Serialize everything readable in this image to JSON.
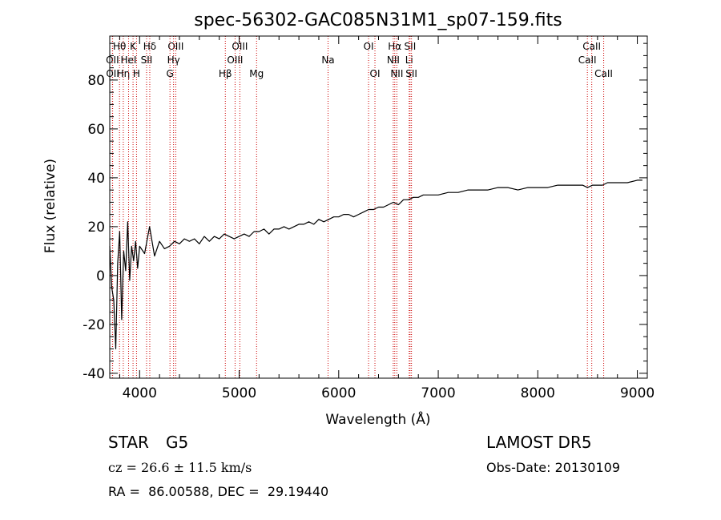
{
  "chart_data": {
    "type": "line",
    "title": "spec-56302-GAC085N31M1_sp07-159.fits",
    "xlabel": "Wavelength (Å)",
    "ylabel": "Flux (relative)",
    "xlim": [
      3700,
      9100
    ],
    "ylim": [
      -42,
      98
    ],
    "xticks": [
      4000,
      5000,
      6000,
      7000,
      8000,
      9000
    ],
    "yticks": [
      -40,
      -20,
      0,
      20,
      40,
      60,
      80
    ],
    "grid": false,
    "line_color": "#000000",
    "marker_color": "#cc0000",
    "series": [
      {
        "x": [
          3700,
          3720,
          3740,
          3760,
          3780,
          3800,
          3820,
          3840,
          3860,
          3880,
          3900,
          3920,
          3940,
          3960,
          3980,
          4000,
          4050,
          4100,
          4150,
          4200,
          4250,
          4300,
          4350,
          4400,
          4450,
          4500,
          4550,
          4600,
          4650,
          4700,
          4750,
          4800,
          4850,
          4900,
          4950,
          5000,
          5050,
          5100,
          5150,
          5200,
          5250,
          5300,
          5350,
          5400,
          5450,
          5500,
          5550,
          5600,
          5650,
          5700,
          5750,
          5800,
          5850,
          5900,
          5950,
          6000,
          6050,
          6100,
          6150,
          6200,
          6250,
          6300,
          6350,
          6400,
          6450,
          6500,
          6550,
          6600,
          6650,
          6700,
          6750,
          6800,
          6850,
          6900,
          6950,
          7000,
          7100,
          7200,
          7300,
          7400,
          7500,
          7600,
          7700,
          7800,
          7900,
          8000,
          8100,
          8200,
          8300,
          8400,
          8450,
          8500,
          8550,
          8600,
          8650,
          8700,
          8800,
          8900,
          9000,
          9050
        ],
        "y": [
          12,
          -5,
          -10,
          -30,
          5,
          18,
          -18,
          10,
          2,
          22,
          -2,
          12,
          6,
          14,
          3,
          12,
          9,
          20,
          8,
          14,
          11,
          12,
          14,
          13,
          15,
          14,
          15,
          13,
          16,
          14,
          16,
          15,
          17,
          16,
          15,
          16,
          17,
          16,
          18,
          18,
          19,
          17,
          19,
          19,
          20,
          19,
          20,
          21,
          21,
          22,
          21,
          23,
          22,
          23,
          24,
          24,
          25,
          25,
          24,
          25,
          26,
          27,
          27,
          28,
          28,
          29,
          30,
          29,
          31,
          31,
          32,
          32,
          33,
          33,
          33,
          33,
          34,
          34,
          35,
          35,
          35,
          36,
          36,
          35,
          36,
          36,
          36,
          37,
          37,
          37,
          37,
          36,
          37,
          37,
          37,
          38,
          38,
          38,
          39,
          39
        ]
      }
    ],
    "lines": [
      {
        "label": "Hθ",
        "wl": 3798,
        "row": 0
      },
      {
        "label": "OII",
        "wl": 3727,
        "row": 1
      },
      {
        "label": "OII",
        "wl": 3729,
        "row": 2
      },
      {
        "label": "Hη",
        "wl": 3836,
        "row": 2
      },
      {
        "label": "HeI",
        "wl": 3889,
        "row": 1
      },
      {
        "label": "K",
        "wl": 3934,
        "row": 0
      },
      {
        "label": "H",
        "wl": 3969,
        "row": 2
      },
      {
        "label": "SII",
        "wl": 4070,
        "row": 1
      },
      {
        "label": "Hδ",
        "wl": 4102,
        "row": 0
      },
      {
        "label": "OIII",
        "wl": 4363,
        "row": 0
      },
      {
        "label": "Hγ",
        "wl": 4341,
        "row": 1
      },
      {
        "label": "G",
        "wl": 4305,
        "row": 2
      },
      {
        "label": "Hβ",
        "wl": 4861,
        "row": 2
      },
      {
        "label": "OIII",
        "wl": 4959,
        "row": 1
      },
      {
        "label": "OIII",
        "wl": 5007,
        "row": 0
      },
      {
        "label": "Mg",
        "wl": 5175,
        "row": 2
      },
      {
        "label": "Na",
        "wl": 5893,
        "row": 1
      },
      {
        "label": "OI",
        "wl": 6300,
        "row": 0
      },
      {
        "label": "OI",
        "wl": 6364,
        "row": 2
      },
      {
        "label": "Hα",
        "wl": 6563,
        "row": 0
      },
      {
        "label": "NII",
        "wl": 6548,
        "row": 1
      },
      {
        "label": "NII",
        "wl": 6584,
        "row": 2
      },
      {
        "label": "SII",
        "wl": 6717,
        "row": 0
      },
      {
        "label": "Li",
        "wl": 6708,
        "row": 1
      },
      {
        "label": "SII",
        "wl": 6731,
        "row": 2
      },
      {
        "label": "CaII",
        "wl": 8542,
        "row": 0
      },
      {
        "label": "CaII",
        "wl": 8498,
        "row": 1
      },
      {
        "label": "CaII",
        "wl": 8662,
        "row": 2
      }
    ]
  },
  "info": {
    "class": "STAR",
    "subclass": "G5",
    "survey": "LAMOST DR5",
    "cz": "cz = 26.6 ± 11.5 km/s",
    "obs_date": "Obs-Date: 20130109",
    "radec": "RA =  86.00588, DEC =  29.19440"
  }
}
